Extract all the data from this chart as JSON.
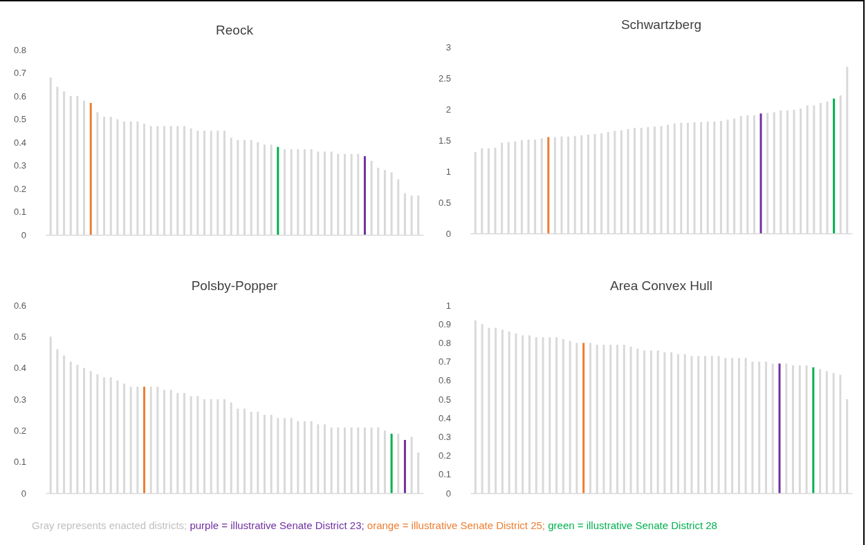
{
  "chart_data": [
    {
      "type": "bar",
      "title": "Reock",
      "categories": [
        null,
        null,
        null,
        null,
        null,
        null,
        null,
        null,
        null,
        null,
        null,
        null,
        null,
        null,
        null,
        null,
        null,
        null,
        null,
        null,
        null,
        null,
        null,
        null,
        null,
        null,
        null,
        null,
        null,
        null,
        null,
        null,
        null,
        null,
        null,
        null,
        null,
        null,
        null,
        null,
        null,
        null,
        null,
        null,
        null,
        null,
        null,
        null,
        null,
        null,
        null,
        null,
        null,
        null,
        null,
        null
      ],
      "values": [
        0.68,
        0.64,
        0.62,
        0.6,
        0.6,
        0.58,
        0.57,
        0.53,
        0.51,
        0.51,
        0.5,
        0.49,
        0.49,
        0.49,
        0.48,
        0.47,
        0.47,
        0.47,
        0.47,
        0.47,
        0.47,
        0.46,
        0.45,
        0.45,
        0.45,
        0.45,
        0.45,
        0.42,
        0.41,
        0.41,
        0.41,
        0.4,
        0.39,
        0.39,
        0.38,
        0.37,
        0.37,
        0.37,
        0.37,
        0.37,
        0.36,
        0.36,
        0.36,
        0.35,
        0.35,
        0.35,
        0.35,
        0.34,
        0.32,
        0.29,
        0.28,
        0.27,
        0.24,
        0.18,
        0.17,
        0.17
      ],
      "colors": [
        "#d9d9d9",
        "#d9d9d9",
        "#d9d9d9",
        "#d9d9d9",
        "#d9d9d9",
        "#d9d9d9",
        "#ed7d31",
        "#d9d9d9",
        "#d9d9d9",
        "#d9d9d9",
        "#d9d9d9",
        "#d9d9d9",
        "#d9d9d9",
        "#d9d9d9",
        "#d9d9d9",
        "#d9d9d9",
        "#d9d9d9",
        "#d9d9d9",
        "#d9d9d9",
        "#d9d9d9",
        "#d9d9d9",
        "#d9d9d9",
        "#d9d9d9",
        "#d9d9d9",
        "#d9d9d9",
        "#d9d9d9",
        "#d9d9d9",
        "#d9d9d9",
        "#d9d9d9",
        "#d9d9d9",
        "#d9d9d9",
        "#d9d9d9",
        "#d9d9d9",
        "#d9d9d9",
        "#00b050",
        "#d9d9d9",
        "#d9d9d9",
        "#d9d9d9",
        "#d9d9d9",
        "#d9d9d9",
        "#d9d9d9",
        "#d9d9d9",
        "#d9d9d9",
        "#d9d9d9",
        "#d9d9d9",
        "#d9d9d9",
        "#d9d9d9",
        "#7030a0",
        "#d9d9d9",
        "#d9d9d9",
        "#d9d9d9",
        "#d9d9d9",
        "#d9d9d9",
        "#d9d9d9",
        "#d9d9d9",
        "#d9d9d9"
      ],
      "ylim": [
        0,
        0.8
      ],
      "yticks": [
        0,
        0.1,
        0.2,
        0.3,
        0.4,
        0.5,
        0.6,
        0.7,
        0.8
      ]
    },
    {
      "type": "bar",
      "title": "Schwartzberg",
      "categories": [
        null,
        null,
        null,
        null,
        null,
        null,
        null,
        null,
        null,
        null,
        null,
        null,
        null,
        null,
        null,
        null,
        null,
        null,
        null,
        null,
        null,
        null,
        null,
        null,
        null,
        null,
        null,
        null,
        null,
        null,
        null,
        null,
        null,
        null,
        null,
        null,
        null,
        null,
        null,
        null,
        null,
        null,
        null,
        null,
        null,
        null,
        null,
        null,
        null,
        null,
        null,
        null,
        null,
        null,
        null,
        null,
        null
      ],
      "values": [
        1.31,
        1.37,
        1.37,
        1.38,
        1.46,
        1.47,
        1.48,
        1.5,
        1.51,
        1.51,
        1.53,
        1.55,
        1.55,
        1.56,
        1.56,
        1.57,
        1.58,
        1.59,
        1.6,
        1.61,
        1.63,
        1.65,
        1.66,
        1.68,
        1.7,
        1.7,
        1.71,
        1.72,
        1.73,
        1.75,
        1.77,
        1.78,
        1.78,
        1.79,
        1.79,
        1.8,
        1.8,
        1.81,
        1.83,
        1.85,
        1.89,
        1.9,
        1.9,
        1.93,
        1.94,
        1.95,
        1.98,
        1.98,
        1.99,
        2.01,
        2.06,
        2.06,
        2.1,
        2.12,
        2.17,
        2.22,
        2.68
      ],
      "colors": [
        "#d9d9d9",
        "#d9d9d9",
        "#d9d9d9",
        "#d9d9d9",
        "#d9d9d9",
        "#d9d9d9",
        "#d9d9d9",
        "#d9d9d9",
        "#d9d9d9",
        "#d9d9d9",
        "#d9d9d9",
        "#ed7d31",
        "#d9d9d9",
        "#d9d9d9",
        "#d9d9d9",
        "#d9d9d9",
        "#d9d9d9",
        "#d9d9d9",
        "#d9d9d9",
        "#d9d9d9",
        "#d9d9d9",
        "#d9d9d9",
        "#d9d9d9",
        "#d9d9d9",
        "#d9d9d9",
        "#d9d9d9",
        "#d9d9d9",
        "#d9d9d9",
        "#d9d9d9",
        "#d9d9d9",
        "#d9d9d9",
        "#d9d9d9",
        "#d9d9d9",
        "#d9d9d9",
        "#d9d9d9",
        "#d9d9d9",
        "#d9d9d9",
        "#d9d9d9",
        "#d9d9d9",
        "#d9d9d9",
        "#d9d9d9",
        "#d9d9d9",
        "#d9d9d9",
        "#7030a0",
        "#d9d9d9",
        "#d9d9d9",
        "#d9d9d9",
        "#d9d9d9",
        "#d9d9d9",
        "#d9d9d9",
        "#d9d9d9",
        "#d9d9d9",
        "#d9d9d9",
        "#d9d9d9",
        "#00b050",
        "#d9d9d9",
        "#d9d9d9"
      ],
      "ylim": [
        0,
        3
      ],
      "yticks": [
        0,
        0.5,
        1,
        1.5,
        2,
        2.5,
        3
      ]
    },
    {
      "type": "bar",
      "title": "Polsby-Popper",
      "categories": [
        null,
        null,
        null,
        null,
        null,
        null,
        null,
        null,
        null,
        null,
        null,
        null,
        null,
        null,
        null,
        null,
        null,
        null,
        null,
        null,
        null,
        null,
        null,
        null,
        null,
        null,
        null,
        null,
        null,
        null,
        null,
        null,
        null,
        null,
        null,
        null,
        null,
        null,
        null,
        null,
        null,
        null,
        null,
        null,
        null,
        null,
        null,
        null,
        null,
        null,
        null,
        null,
        null,
        null,
        null,
        null
      ],
      "values": [
        0.5,
        0.46,
        0.44,
        0.42,
        0.41,
        0.4,
        0.39,
        0.38,
        0.37,
        0.37,
        0.36,
        0.35,
        0.34,
        0.34,
        0.34,
        0.34,
        0.34,
        0.33,
        0.33,
        0.32,
        0.32,
        0.31,
        0.31,
        0.3,
        0.3,
        0.3,
        0.3,
        0.29,
        0.27,
        0.27,
        0.26,
        0.26,
        0.25,
        0.25,
        0.24,
        0.24,
        0.24,
        0.23,
        0.23,
        0.23,
        0.22,
        0.22,
        0.21,
        0.21,
        0.21,
        0.21,
        0.21,
        0.21,
        0.21,
        0.21,
        0.2,
        0.19,
        0.19,
        0.17,
        0.18,
        0.13
      ],
      "colors": [
        "#d9d9d9",
        "#d9d9d9",
        "#d9d9d9",
        "#d9d9d9",
        "#d9d9d9",
        "#d9d9d9",
        "#d9d9d9",
        "#d9d9d9",
        "#d9d9d9",
        "#d9d9d9",
        "#d9d9d9",
        "#d9d9d9",
        "#d9d9d9",
        "#d9d9d9",
        "#ed7d31",
        "#d9d9d9",
        "#d9d9d9",
        "#d9d9d9",
        "#d9d9d9",
        "#d9d9d9",
        "#d9d9d9",
        "#d9d9d9",
        "#d9d9d9",
        "#d9d9d9",
        "#d9d9d9",
        "#d9d9d9",
        "#d9d9d9",
        "#d9d9d9",
        "#d9d9d9",
        "#d9d9d9",
        "#d9d9d9",
        "#d9d9d9",
        "#d9d9d9",
        "#d9d9d9",
        "#d9d9d9",
        "#d9d9d9",
        "#d9d9d9",
        "#d9d9d9",
        "#d9d9d9",
        "#d9d9d9",
        "#d9d9d9",
        "#d9d9d9",
        "#d9d9d9",
        "#d9d9d9",
        "#d9d9d9",
        "#d9d9d9",
        "#d9d9d9",
        "#d9d9d9",
        "#d9d9d9",
        "#d9d9d9",
        "#d9d9d9",
        "#00b050",
        "#d9d9d9",
        "#7030a0",
        "#d9d9d9",
        "#d9d9d9"
      ],
      "ylim": [
        0,
        0.6
      ],
      "yticks": [
        0,
        0.1,
        0.2,
        0.3,
        0.4,
        0.5,
        0.6
      ]
    },
    {
      "type": "bar",
      "title": "Area Convex Hull",
      "categories": [
        null,
        null,
        null,
        null,
        null,
        null,
        null,
        null,
        null,
        null,
        null,
        null,
        null,
        null,
        null,
        null,
        null,
        null,
        null,
        null,
        null,
        null,
        null,
        null,
        null,
        null,
        null,
        null,
        null,
        null,
        null,
        null,
        null,
        null,
        null,
        null,
        null,
        null,
        null,
        null,
        null,
        null,
        null,
        null,
        null,
        null,
        null,
        null,
        null,
        null,
        null,
        null,
        null,
        null,
        null,
        null
      ],
      "values": [
        0.92,
        0.9,
        0.88,
        0.88,
        0.87,
        0.86,
        0.85,
        0.84,
        0.84,
        0.83,
        0.83,
        0.83,
        0.83,
        0.82,
        0.81,
        0.8,
        0.8,
        0.8,
        0.79,
        0.79,
        0.79,
        0.79,
        0.79,
        0.78,
        0.77,
        0.76,
        0.76,
        0.76,
        0.75,
        0.75,
        0.74,
        0.74,
        0.73,
        0.73,
        0.73,
        0.73,
        0.73,
        0.72,
        0.72,
        0.72,
        0.72,
        0.7,
        0.7,
        0.7,
        0.69,
        0.69,
        0.69,
        0.68,
        0.68,
        0.68,
        0.67,
        0.66,
        0.65,
        0.64,
        0.63,
        0.5
      ],
      "colors": [
        "#d9d9d9",
        "#d9d9d9",
        "#d9d9d9",
        "#d9d9d9",
        "#d9d9d9",
        "#d9d9d9",
        "#d9d9d9",
        "#d9d9d9",
        "#d9d9d9",
        "#d9d9d9",
        "#d9d9d9",
        "#d9d9d9",
        "#d9d9d9",
        "#d9d9d9",
        "#d9d9d9",
        "#d9d9d9",
        "#ed7d31",
        "#d9d9d9",
        "#d9d9d9",
        "#d9d9d9",
        "#d9d9d9",
        "#d9d9d9",
        "#d9d9d9",
        "#d9d9d9",
        "#d9d9d9",
        "#d9d9d9",
        "#d9d9d9",
        "#d9d9d9",
        "#d9d9d9",
        "#d9d9d9",
        "#d9d9d9",
        "#d9d9d9",
        "#d9d9d9",
        "#d9d9d9",
        "#d9d9d9",
        "#d9d9d9",
        "#d9d9d9",
        "#d9d9d9",
        "#d9d9d9",
        "#d9d9d9",
        "#d9d9d9",
        "#d9d9d9",
        "#d9d9d9",
        "#d9d9d9",
        "#d9d9d9",
        "#7030a0",
        "#d9d9d9",
        "#d9d9d9",
        "#d9d9d9",
        "#d9d9d9",
        "#00b050",
        "#d9d9d9",
        "#d9d9d9",
        "#d9d9d9",
        "#d9d9d9",
        "#d9d9d9"
      ],
      "ylim": [
        0,
        1
      ],
      "yticks": [
        0,
        0.1,
        0.2,
        0.3,
        0.4,
        0.5,
        0.6,
        0.7,
        0.8,
        0.9,
        1
      ],
      "annotations": [
        "Gray represents enacted districts;",
        "purple = illustrative Senate District 23;",
        "orange = illustrative Senate District 25;",
        "green = illustrative Senate District 28"
      ]
    }
  ]
}
